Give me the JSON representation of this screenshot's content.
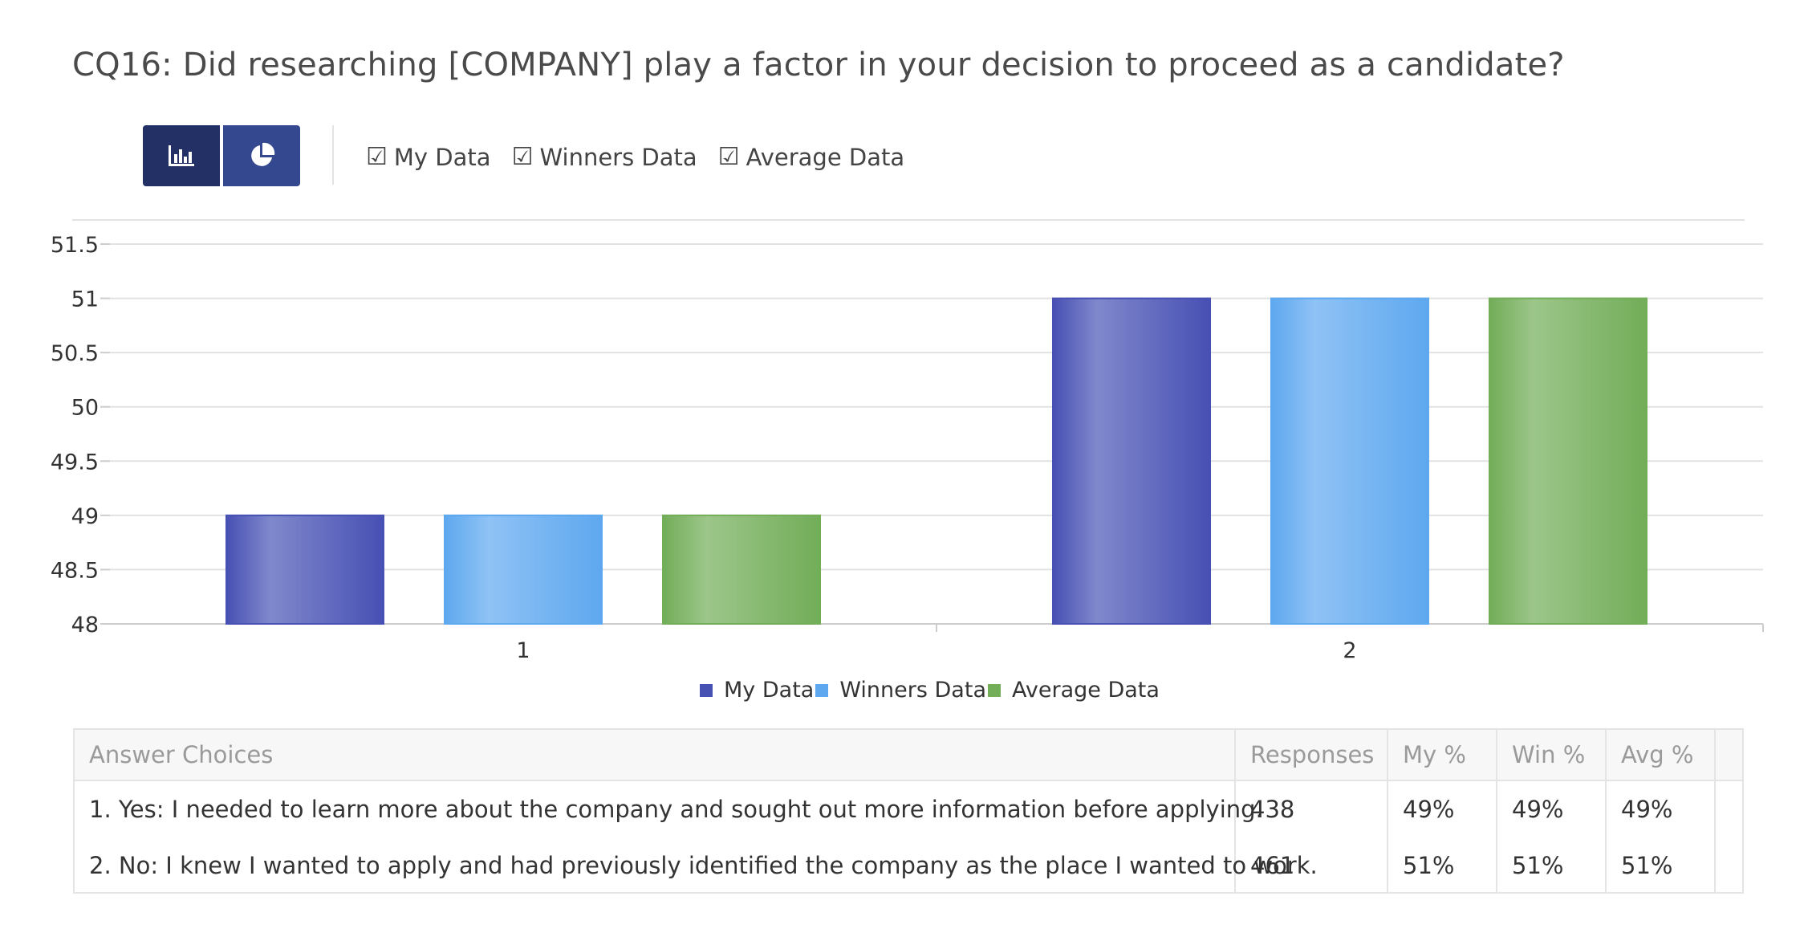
{
  "title": "CQ16: Did researching [COMPANY] play a factor in your decision to proceed as a candidate?",
  "view_buttons": [
    {
      "icon": "bar-chart-icon",
      "active": true
    },
    {
      "icon": "pie-chart-icon",
      "active": false
    }
  ],
  "toggles": [
    {
      "label": "My Data",
      "checked": true,
      "glyph": "☑"
    },
    {
      "label": "Winners Data",
      "checked": true,
      "glyph": "☑"
    },
    {
      "label": "Average Data",
      "checked": true,
      "glyph": "☑"
    }
  ],
  "colors": {
    "my_data": "#4750b3",
    "winners_data": "#5ea8ef",
    "average_data": "#72ad58"
  },
  "chart_data": {
    "type": "bar",
    "categories": [
      "1",
      "2"
    ],
    "series": [
      {
        "name": "My Data",
        "values": [
          49,
          51
        ]
      },
      {
        "name": "Winners Data",
        "values": [
          49,
          51
        ]
      },
      {
        "name": "Average Data",
        "values": [
          49,
          51
        ]
      }
    ],
    "ylim": [
      48,
      51.5
    ],
    "yticks": [
      "48",
      "48.5",
      "49",
      "49.5",
      "50",
      "50.5",
      "51",
      "51.5"
    ],
    "grid": true,
    "legend": "bottom-center"
  },
  "table": {
    "headers": [
      "Answer Choices",
      "Responses",
      "My %",
      "Win %",
      "Avg %"
    ],
    "rows": [
      {
        "choice": "1. Yes: I needed to learn more about the company and sought out more information before applying.",
        "responses": "438",
        "my": "49%",
        "win": "49%",
        "avg": "49%"
      },
      {
        "choice": "2. No: I knew I wanted to apply and had previously identified the company as the place I wanted to work.",
        "responses": "461",
        "my": "51%",
        "win": "51%",
        "avg": "51%"
      }
    ]
  }
}
